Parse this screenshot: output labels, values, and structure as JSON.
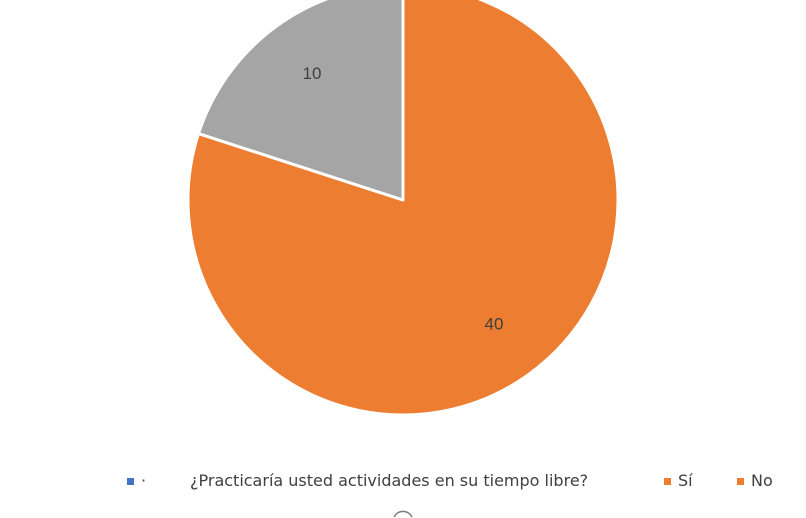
{
  "chart_data": {
    "type": "pie",
    "title": "",
    "categories": [
      "",
      "¿Practicaría usted actividades en su tiempo libre?",
      "Sí",
      "No"
    ],
    "values": [
      0,
      0,
      40,
      10
    ],
    "colors": [
      "#4472C4",
      "#ED7D31",
      "#ED7D31",
      "#A5A5A5"
    ],
    "data_labels": [
      "",
      "",
      "40",
      "10"
    ],
    "legend": {
      "position": "bottom",
      "entries": [
        {
          "label": "",
          "color": "#4472C4"
        },
        {
          "label": "¿Practicaría usted actividades en su tiempo libre?",
          "color": "#ED7D31"
        },
        {
          "label": "Sí",
          "color": "#ED7D31"
        },
        {
          "label": "No",
          "color": "#A5A5A5"
        }
      ]
    }
  }
}
